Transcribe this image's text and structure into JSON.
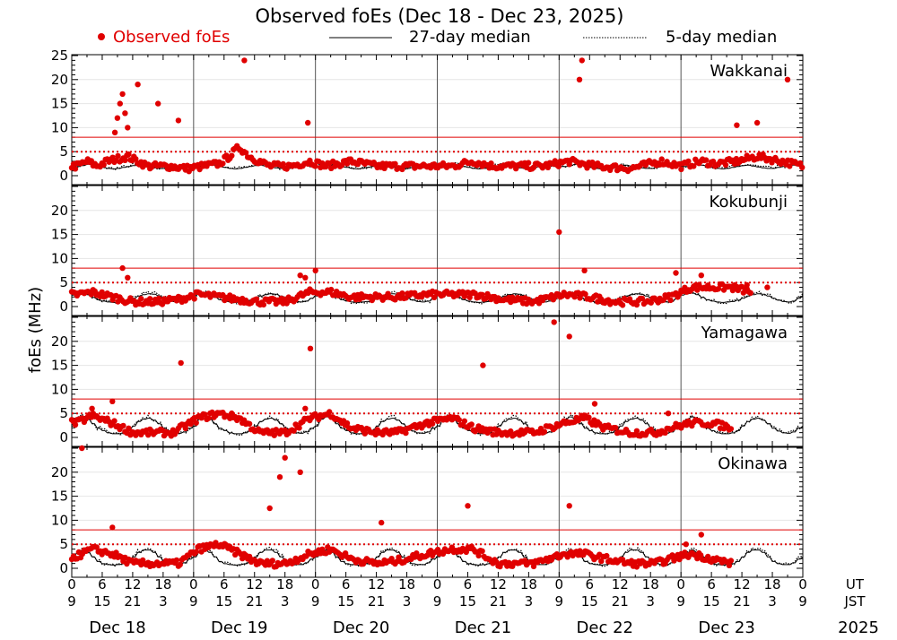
{
  "chart_data": {
    "type": "scatter",
    "title": "Observed foEs (Dec 18 - Dec 23, 2025)",
    "ylabel": "foEs (MHz)",
    "legend": {
      "observed": "Observed foEs",
      "median27": "27-day median",
      "median5": "5-day median"
    },
    "colors": {
      "observed": "#e00000",
      "median27": "#000000",
      "median5": "#000000",
      "ref_line": "#e00000"
    },
    "ylim": [
      0,
      25
    ],
    "yticks": [
      0,
      5,
      10,
      15,
      20,
      25
    ],
    "reference_lines": [
      {
        "value": 8,
        "style": "solid"
      },
      {
        "value": 5,
        "style": "dotted"
      }
    ],
    "x_axis": {
      "ut_label": "UT",
      "jst_label": "JST",
      "year_label": "2025",
      "ut_ticks": [
        "0",
        "6",
        "12",
        "18",
        "0",
        "6",
        "12",
        "18",
        "0",
        "6",
        "12",
        "18",
        "0",
        "6",
        "12",
        "18",
        "0",
        "6",
        "12",
        "18",
        "0",
        "6",
        "12",
        "18",
        "0"
      ],
      "jst_ticks": [
        "9",
        "15",
        "21",
        "3",
        "9",
        "15",
        "21",
        "3",
        "9",
        "15",
        "21",
        "3",
        "9",
        "15",
        "21",
        "3",
        "9",
        "15",
        "21",
        "3",
        "9",
        "15",
        "21",
        "3",
        "9"
      ],
      "days": [
        "Dec 18",
        "Dec 19",
        "Dec 20",
        "Dec 21",
        "Dec 22",
        "Dec 23"
      ]
    },
    "stations": [
      {
        "name": "Wakkanai",
        "ytick_labels": [
          "0",
          "5",
          "10",
          "15",
          "20",
          "25"
        ],
        "median_pattern": [
          2,
          2,
          2.2,
          2.5,
          2.3,
          2,
          1.8,
          1.6,
          1.5,
          1.6,
          1.8,
          2,
          2.2,
          2.3,
          2.1,
          1.9,
          1.7,
          1.6,
          1.6,
          1.8,
          2,
          2.2,
          2.3,
          2.1
        ],
        "observed_outliers": [
          [
            8.5,
            9
          ],
          [
            9,
            12
          ],
          [
            9.5,
            15
          ],
          [
            10,
            17
          ],
          [
            10.5,
            13
          ],
          [
            11,
            10
          ],
          [
            13,
            19
          ],
          [
            17,
            15
          ],
          [
            21,
            11.5
          ],
          [
            34,
            24
          ],
          [
            46.5,
            11
          ],
          [
            100,
            20
          ],
          [
            100.5,
            24
          ],
          [
            131,
            10.5
          ],
          [
            135,
            11
          ],
          [
            141,
            20
          ]
        ],
        "observed_base": [
          [
            1,
            2
          ],
          [
            3,
            3
          ],
          [
            5,
            2
          ],
          [
            7,
            3
          ],
          [
            9,
            3.5
          ],
          [
            11,
            4
          ],
          [
            13,
            3
          ],
          [
            15,
            2
          ],
          [
            19,
            2
          ],
          [
            23,
            1.5
          ],
          [
            26,
            2
          ],
          [
            29,
            2.5
          ],
          [
            31,
            4
          ],
          [
            33,
            6
          ],
          [
            35,
            4
          ],
          [
            39,
            2
          ],
          [
            43,
            2
          ],
          [
            47,
            3
          ],
          [
            50,
            2
          ],
          [
            55,
            3
          ],
          [
            60,
            2
          ],
          [
            65,
            2
          ],
          [
            70,
            2
          ],
          [
            75,
            2
          ],
          [
            79,
            3
          ],
          [
            83,
            2
          ],
          [
            88,
            2
          ],
          [
            93,
            2
          ],
          [
            98,
            3
          ],
          [
            103,
            2
          ],
          [
            110,
            1.5
          ],
          [
            116,
            3
          ],
          [
            120,
            2
          ],
          [
            124,
            3
          ],
          [
            127,
            2.5
          ],
          [
            131,
            3
          ],
          [
            135,
            4
          ],
          [
            140,
            3
          ],
          [
            144,
            2
          ]
        ]
      },
      {
        "name": "Kokubunji",
        "ytick_labels": [
          "0",
          "5",
          "10",
          "15",
          "20",
          ""
        ],
        "median_pattern": [
          2.5,
          2.8,
          3,
          2.6,
          2,
          1.5,
          1.2,
          1,
          0.9,
          1,
          1.1,
          1.4,
          1.8,
          2.3,
          2.6,
          2.8,
          2.7,
          2.3,
          1.8,
          1.4,
          1.1,
          1,
          1.2,
          1.8
        ],
        "observed_outliers": [
          [
            10,
            8
          ],
          [
            11,
            6
          ],
          [
            45,
            6.5
          ],
          [
            46,
            6
          ],
          [
            48,
            7.5
          ],
          [
            96,
            15.5
          ],
          [
            101,
            7.5
          ],
          [
            119,
            7
          ],
          [
            124,
            6.5
          ],
          [
            131,
            4
          ],
          [
            133,
            4.5
          ],
          [
            137,
            4
          ]
        ],
        "observed_base": [
          [
            1,
            2.5
          ],
          [
            4,
            3
          ],
          [
            8,
            2
          ],
          [
            12,
            1
          ],
          [
            17,
            1
          ],
          [
            21,
            1.5
          ],
          [
            25,
            2.5
          ],
          [
            29,
            2
          ],
          [
            33,
            1.5
          ],
          [
            37,
            1
          ],
          [
            42,
            1
          ],
          [
            47,
            3
          ],
          [
            51,
            3
          ],
          [
            55,
            2
          ],
          [
            60,
            2
          ],
          [
            64,
            2
          ],
          [
            70,
            2.5
          ],
          [
            75,
            2.5
          ],
          [
            80,
            2.5
          ],
          [
            85,
            1.5
          ],
          [
            91,
            1
          ],
          [
            97,
            2.5
          ],
          [
            102,
            2
          ],
          [
            107,
            1
          ],
          [
            113,
            1
          ],
          [
            118,
            2
          ],
          [
            122,
            4
          ],
          [
            126,
            4
          ],
          [
            130,
            4
          ],
          [
            134,
            3
          ]
        ]
      },
      {
        "name": "Yamagawa",
        "ytick_labels": [
          "0",
          "5",
          "10",
          "15",
          "20",
          ""
        ],
        "median_pattern": [
          2.5,
          4,
          4.5,
          4,
          3,
          2,
          1.5,
          1,
          0.8,
          0.8,
          1,
          1.5,
          2.5,
          3.5,
          4,
          4.2,
          3.8,
          3,
          2,
          1.4,
          1,
          0.9,
          1.2,
          2
        ],
        "observed_outliers": [
          [
            4,
            6
          ],
          [
            8,
            7.5
          ],
          [
            21.5,
            15.5
          ],
          [
            46,
            6
          ],
          [
            47,
            18.5
          ],
          [
            81,
            15
          ],
          [
            95,
            24
          ],
          [
            98,
            21
          ],
          [
            103,
            7
          ],
          [
            117.5,
            5
          ]
        ],
        "observed_base": [
          [
            1,
            3
          ],
          [
            4,
            4.5
          ],
          [
            8,
            3
          ],
          [
            12,
            1
          ],
          [
            17,
            1
          ],
          [
            20,
            1
          ],
          [
            25,
            4
          ],
          [
            29,
            5
          ],
          [
            33,
            4
          ],
          [
            37,
            1
          ],
          [
            42,
            1
          ],
          [
            47,
            4
          ],
          [
            51,
            5
          ],
          [
            55,
            2
          ],
          [
            60,
            1
          ],
          [
            64,
            1
          ],
          [
            70,
            3
          ],
          [
            75,
            4
          ],
          [
            79,
            2
          ],
          [
            84,
            1
          ],
          [
            91,
            1
          ],
          [
            97,
            3
          ],
          [
            101,
            4
          ],
          [
            105,
            2
          ],
          [
            110,
            1
          ],
          [
            115,
            1
          ],
          [
            118,
            2
          ],
          [
            122,
            3
          ],
          [
            126,
            3
          ],
          [
            130,
            2
          ]
        ]
      },
      {
        "name": "Okinawa",
        "ytick_labels": [
          "0",
          "5",
          "10",
          "15",
          "20",
          ""
        ],
        "median_pattern": [
          2.5,
          3.5,
          4,
          3.5,
          2.5,
          1.5,
          1,
          0.8,
          0.7,
          0.8,
          1,
          1.5,
          2.5,
          3.5,
          4,
          4,
          3.5,
          2.5,
          1.5,
          1,
          0.8,
          0.8,
          1.2,
          2
        ],
        "observed_outliers": [
          [
            2,
            25
          ],
          [
            8,
            8.5
          ],
          [
            39,
            12.5
          ],
          [
            41,
            19
          ],
          [
            42,
            23
          ],
          [
            45,
            20
          ],
          [
            61,
            9.5
          ],
          [
            78,
            13
          ],
          [
            98,
            13
          ],
          [
            121,
            5
          ],
          [
            124,
            7
          ]
        ],
        "observed_base": [
          [
            1,
            2.5
          ],
          [
            4,
            4
          ],
          [
            8,
            3
          ],
          [
            12,
            1
          ],
          [
            17,
            1
          ],
          [
            21,
            1
          ],
          [
            25,
            4
          ],
          [
            29,
            5
          ],
          [
            33,
            3
          ],
          [
            37,
            1
          ],
          [
            42,
            1
          ],
          [
            47,
            3
          ],
          [
            51,
            4
          ],
          [
            55,
            2
          ],
          [
            60,
            1
          ],
          [
            64,
            1.5
          ],
          [
            70,
            3
          ],
          [
            75,
            4
          ],
          [
            79,
            4
          ],
          [
            84,
            1
          ],
          [
            91,
            1
          ],
          [
            97,
            3
          ],
          [
            101,
            3
          ],
          [
            105,
            2
          ],
          [
            110,
            1
          ],
          [
            115,
            1
          ],
          [
            118,
            2
          ],
          [
            122,
            3
          ],
          [
            126,
            2
          ],
          [
            130,
            1
          ]
        ]
      }
    ]
  }
}
